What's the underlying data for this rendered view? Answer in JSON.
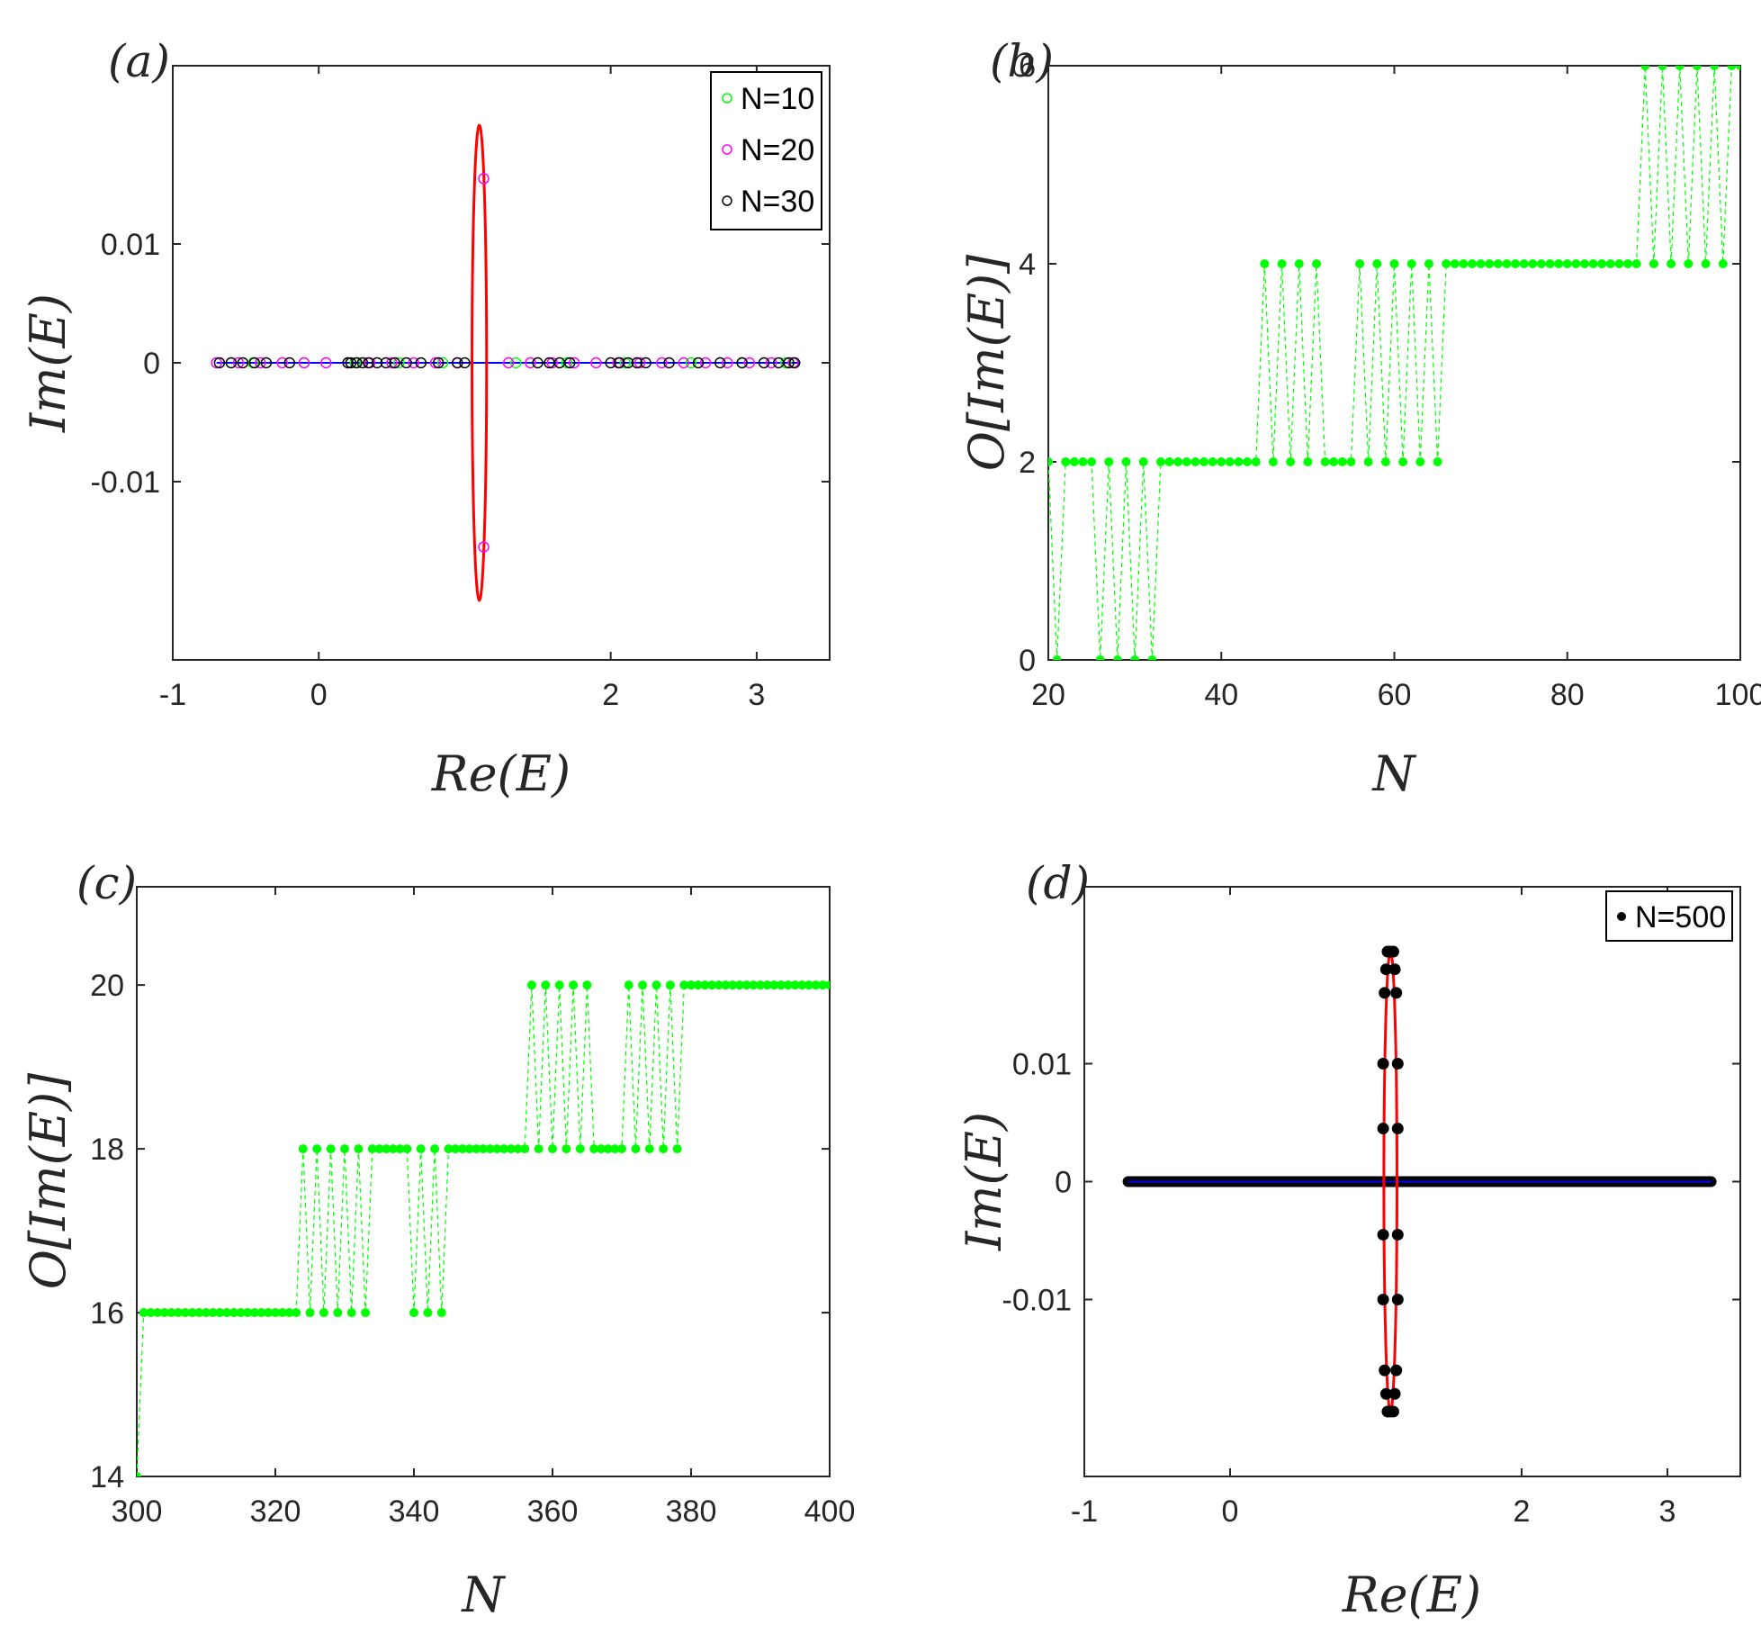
{
  "figure": {
    "panels": [
      "(a)",
      "(b)",
      "(c)",
      "(d)"
    ]
  },
  "colors": {
    "green": "#00ff00",
    "magenta": "#ff00ff",
    "black": "#000000",
    "red": "#ff0000",
    "blue": "#0000ff"
  },
  "chart_data": [
    {
      "panel": "(a)",
      "type": "scatter",
      "xlabel": "Re(E)",
      "ylabel": "Im(E)",
      "xlim": [
        -1,
        3.5
      ],
      "ylim": [
        -0.025,
        0.025
      ],
      "xticks": [
        -1,
        0,
        2,
        3
      ],
      "xticklabels": [
        "-1",
        "0",
        "2",
        "3"
      ],
      "yticks": [
        -0.01,
        0,
        0.01
      ],
      "yticklabels": [
        "-0.01",
        "0",
        "0.01"
      ],
      "legend": {
        "position": "top-right",
        "entries": [
          "N=10",
          "N=20",
          "N=30"
        ]
      },
      "curves": {
        "ellipse": {
          "color": "red",
          "cx": 1.1,
          "rx": 0.05,
          "ry": 0.02
        },
        "line": {
          "color": "blue",
          "x": [
            -0.7,
            3.3
          ],
          "y": 0
        }
      },
      "series": [
        {
          "name": "N=10",
          "color": "green",
          "marker": "open-circle",
          "x": [
            -0.7,
            -0.45,
            -0.1,
            0.25,
            0.55,
            0.85,
            1.35,
            1.7,
            2.1,
            2.55,
            2.9,
            3.2
          ],
          "y": [
            0,
            0,
            0,
            0,
            0,
            0,
            0,
            0,
            0,
            0,
            0,
            0
          ]
        },
        {
          "name": "N=20",
          "color": "magenta",
          "marker": "open-circle",
          "x": [
            -0.7,
            -0.55,
            -0.4,
            -0.25,
            -0.1,
            0.05,
            0.2,
            0.35,
            0.5,
            0.65,
            0.8,
            0.95,
            1.3,
            1.45,
            1.6,
            1.75,
            1.9,
            2.05,
            2.2,
            2.35,
            2.5,
            2.65,
            2.8,
            2.95,
            3.1,
            3.25,
            1.13,
            1.13
          ],
          "y": [
            0,
            0,
            0,
            0,
            0,
            0,
            0,
            0,
            0,
            0,
            0,
            0,
            0,
            0,
            0,
            0,
            0,
            0,
            0,
            0,
            0,
            0,
            0,
            0,
            0,
            0,
            0.0155,
            -0.0155
          ]
        },
        {
          "name": "N=30",
          "color": "black",
          "marker": "open-circle",
          "x": [
            -0.68,
            -0.6,
            -0.52,
            -0.44,
            -0.36,
            -0.2,
            0.2,
            0.22,
            0.26,
            0.3,
            0.34,
            0.4,
            0.46,
            0.52,
            0.6,
            0.7,
            0.82,
            0.95,
            1.0,
            1.5,
            1.58,
            1.65,
            1.72,
            2.0,
            2.06,
            2.12,
            2.18,
            2.24,
            2.4,
            2.6,
            2.75,
            2.9,
            3.05,
            3.15,
            3.22,
            3.26
          ],
          "y": [
            0,
            0,
            0,
            0,
            0,
            0,
            0,
            0,
            0,
            0,
            0,
            0,
            0,
            0,
            0,
            0,
            0,
            0,
            0,
            0,
            0,
            0,
            0,
            0,
            0,
            0,
            0,
            0,
            0,
            0,
            0,
            0,
            0,
            0,
            0,
            0
          ]
        }
      ]
    },
    {
      "panel": "(b)",
      "type": "line",
      "xlabel": "N",
      "ylabel": "O[Im(E)]",
      "xlim": [
        20,
        100
      ],
      "ylim": [
        0,
        6
      ],
      "xticks": [
        20,
        40,
        60,
        80,
        100
      ],
      "xticklabels": [
        "20",
        "40",
        "60",
        "80",
        "100"
      ],
      "yticks": [
        0,
        2,
        4,
        6
      ],
      "yticklabels": [
        "0",
        "2",
        "4",
        "6"
      ],
      "series": [
        {
          "name": "O[Im(E)]",
          "color": "green",
          "linestyle": "dashed",
          "marker": "filled-circle",
          "x": [
            20,
            21,
            22,
            23,
            24,
            25,
            26,
            27,
            28,
            29,
            30,
            31,
            32,
            33,
            34,
            35,
            36,
            37,
            38,
            39,
            40,
            41,
            42,
            43,
            44,
            45,
            46,
            47,
            48,
            49,
            50,
            51,
            52,
            53,
            54,
            55,
            56,
            57,
            58,
            59,
            60,
            61,
            62,
            63,
            64,
            65,
            66,
            67,
            68,
            69,
            70,
            71,
            72,
            73,
            74,
            75,
            76,
            77,
            78,
            79,
            80,
            81,
            82,
            83,
            84,
            85,
            86,
            87,
            88,
            89,
            90,
            91,
            92,
            93,
            94,
            95,
            96,
            97,
            98,
            99,
            100
          ],
          "y": [
            2,
            0,
            2,
            2,
            2,
            2,
            0,
            2,
            0,
            2,
            0,
            2,
            0,
            2,
            2,
            2,
            2,
            2,
            2,
            2,
            2,
            2,
            2,
            2,
            2,
            4,
            2,
            4,
            2,
            4,
            2,
            4,
            2,
            2,
            2,
            2,
            4,
            2,
            4,
            2,
            4,
            2,
            4,
            2,
            4,
            2,
            4,
            4,
            4,
            4,
            4,
            4,
            4,
            4,
            4,
            4,
            4,
            4,
            4,
            4,
            4,
            4,
            4,
            4,
            4,
            4,
            4,
            4,
            4,
            6,
            4,
            6,
            4,
            6,
            4,
            6,
            4,
            6,
            4,
            6,
            6
          ]
        }
      ]
    },
    {
      "panel": "(c)",
      "type": "line",
      "xlabel": "N",
      "ylabel": "O[Im(E)]",
      "xlim": [
        300,
        400
      ],
      "ylim": [
        14,
        21.2
      ],
      "xticks": [
        300,
        320,
        340,
        360,
        380,
        400
      ],
      "xticklabels": [
        "300",
        "320",
        "340",
        "360",
        "380",
        "400"
      ],
      "yticks": [
        14,
        16,
        18,
        20
      ],
      "yticklabels": [
        "14",
        "16",
        "18",
        "20"
      ],
      "series": [
        {
          "name": "O[Im(E)]",
          "color": "green",
          "linestyle": "dashed",
          "marker": "filled-circle",
          "x": [
            300,
            301,
            302,
            303,
            304,
            305,
            306,
            307,
            308,
            309,
            310,
            311,
            312,
            313,
            314,
            315,
            316,
            317,
            318,
            319,
            320,
            321,
            322,
            323,
            324,
            325,
            326,
            327,
            328,
            329,
            330,
            331,
            332,
            333,
            334,
            335,
            336,
            337,
            338,
            339,
            340,
            341,
            342,
            343,
            344,
            345,
            346,
            347,
            348,
            349,
            350,
            351,
            352,
            353,
            354,
            355,
            356,
            357,
            358,
            359,
            360,
            361,
            362,
            363,
            364,
            365,
            366,
            367,
            368,
            369,
            370,
            371,
            372,
            373,
            374,
            375,
            376,
            377,
            378,
            379,
            380,
            381,
            382,
            383,
            384,
            385,
            386,
            387,
            388,
            389,
            390,
            391,
            392,
            393,
            394,
            395,
            396,
            397,
            398,
            399,
            400
          ],
          "y": [
            14,
            16,
            16,
            16,
            16,
            16,
            16,
            16,
            16,
            16,
            16,
            16,
            16,
            16,
            16,
            16,
            16,
            16,
            16,
            16,
            16,
            16,
            16,
            16,
            18,
            16,
            18,
            16,
            18,
            16,
            18,
            16,
            18,
            16,
            18,
            18,
            18,
            18,
            18,
            18,
            16,
            18,
            16,
            18,
            16,
            18,
            18,
            18,
            18,
            18,
            18,
            18,
            18,
            18,
            18,
            18,
            18,
            20,
            18,
            20,
            18,
            20,
            18,
            20,
            18,
            20,
            18,
            18,
            18,
            18,
            18,
            20,
            18,
            20,
            18,
            20,
            18,
            20,
            18,
            20,
            20,
            20,
            20,
            20,
            20,
            20,
            20,
            20,
            20,
            20,
            20,
            20,
            20,
            20,
            20,
            20,
            20,
            20,
            20,
            20,
            20
          ]
        }
      ]
    },
    {
      "panel": "(d)",
      "type": "scatter",
      "xlabel": "Re(E)",
      "ylabel": "Im(E)",
      "xlim": [
        -1,
        3.5
      ],
      "ylim": [
        -0.025,
        0.025
      ],
      "xticks": [
        -1,
        0,
        2,
        3
      ],
      "xticklabels": [
        "-1",
        "0",
        "2",
        "3"
      ],
      "yticks": [
        -0.01,
        0,
        0.01
      ],
      "yticklabels": [
        "-0.01",
        "0",
        "0.01"
      ],
      "legend": {
        "position": "top-right",
        "entries": [
          "N=500"
        ]
      },
      "curves": {
        "ellipse": {
          "color": "red",
          "cx": 1.1,
          "rx": 0.045,
          "ry": 0.0195
        },
        "line": {
          "color": "blue",
          "x": [
            -0.7,
            3.3
          ],
          "y": 0
        }
      },
      "series": [
        {
          "name": "N=500",
          "color": "black",
          "marker": "filled-circle",
          "x": [
            1.1,
            1.08,
            1.12,
            1.07,
            1.13,
            1.06,
            1.14,
            1.05,
            1.15,
            1.05,
            1.15,
            1.1,
            1.08,
            1.12,
            1.07,
            1.13,
            1.06,
            1.14,
            1.05,
            1.15,
            1.05,
            1.15
          ],
          "y": [
            0.0195,
            0.0195,
            0.0195,
            0.018,
            0.018,
            0.016,
            0.016,
            0.01,
            0.01,
            0.0045,
            0.0045,
            -0.0195,
            -0.0195,
            -0.0195,
            -0.018,
            -0.018,
            -0.016,
            -0.016,
            -0.01,
            -0.01,
            -0.0045,
            -0.0045
          ],
          "dense_line": {
            "x": [
              -0.7,
              3.3
            ],
            "y": 0
          }
        }
      ]
    }
  ]
}
